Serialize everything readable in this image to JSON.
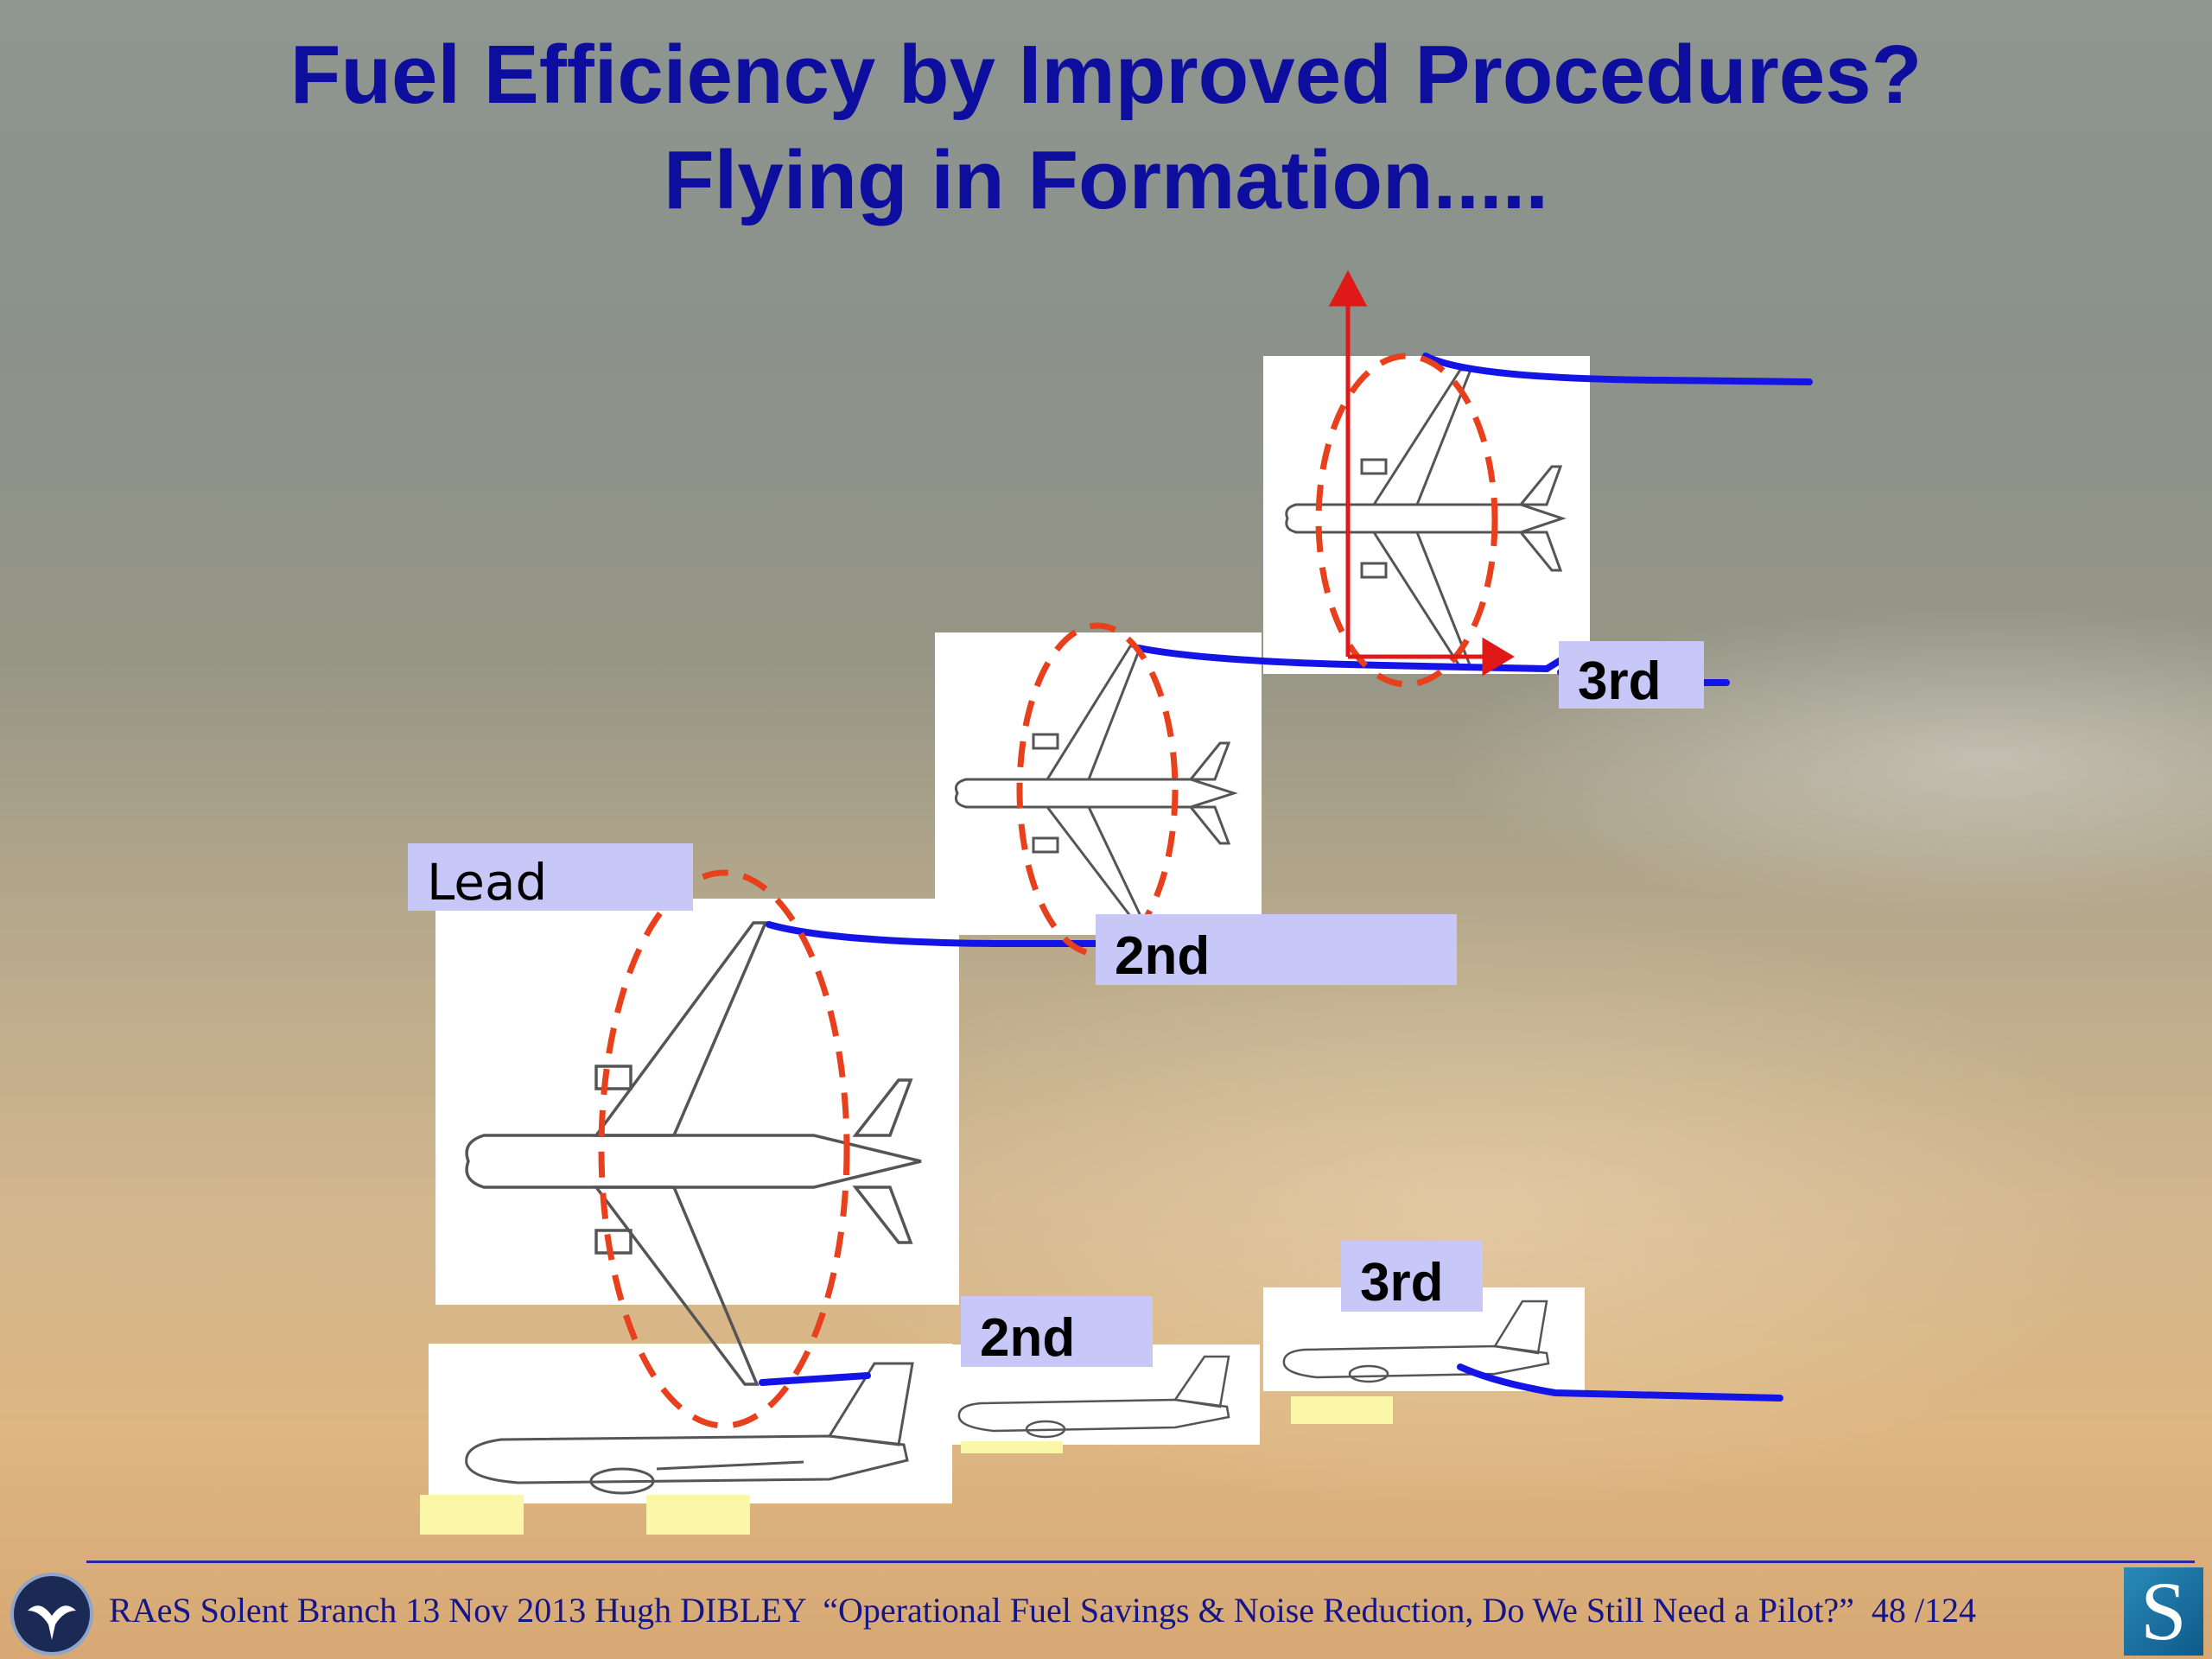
{
  "title_line1": "Fuel Efficiency by Improved Procedures?",
  "title_line2": "Flying in Formation.....",
  "labels": {
    "lead": "Lead",
    "second_top": "2nd",
    "third_top": "3rd",
    "second_side": "2nd",
    "third_side": "3rd"
  },
  "footer": {
    "text": "RAeS Solent Branch 13 Nov 2013 Hugh DIBLEY  “Operational Fuel Savings & Noise Reduction, Do We Still Need a Pilot?”  48 /124",
    "logo_letter": "S"
  },
  "colors": {
    "title": "#0d0e9e",
    "label_bg": "#c8c8f8",
    "wake_line": "#1414e6",
    "vortex_ellipse": "#e8401c",
    "axis_arrow": "#e01818"
  }
}
